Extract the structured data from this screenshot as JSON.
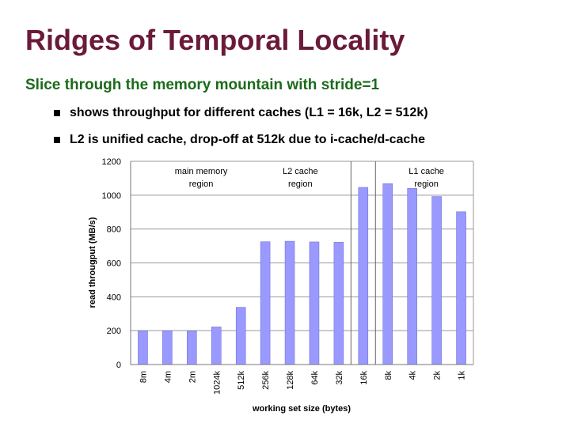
{
  "slide": {
    "title": "Ridges of Temporal Locality",
    "subtitle": "Slice through the memory mountain with stride=1",
    "bullets": [
      "shows throughput for different caches (L1 = 16k, L2 = 512k)",
      "L2 is unified cache, drop-off at 512k due to i-cache/d-cache"
    ]
  },
  "colors": {
    "title": "#6b1a3a",
    "subtitle": "#1b6b1b",
    "bar_fill": "#9999ff",
    "bar_stroke": "#6666cc",
    "grid": "#999999"
  },
  "chart_data": {
    "type": "bar",
    "categories": [
      "8m",
      "4m",
      "2m",
      "1024k",
      "512k",
      "256k",
      "128k",
      "64k",
      "32k",
      "16k",
      "8k",
      "4k",
      "2k",
      "1k"
    ],
    "values": [
      200,
      200,
      198,
      222,
      338,
      725,
      728,
      724,
      722,
      1046,
      1068,
      1040,
      992,
      902
    ],
    "xlabel": "working set size (bytes)",
    "ylabel": "read througput (MB/s)",
    "ylim": [
      0,
      1200
    ],
    "yticks": [
      0,
      200,
      400,
      600,
      800,
      1000,
      1200
    ],
    "grid": true,
    "legend": "none",
    "region_labels": [
      [
        "main memory",
        "region"
      ],
      [
        "L2 cache",
        "region"
      ],
      [
        "L1 cache",
        "region"
      ]
    ],
    "region_dividers_after": [
      "32k",
      "16k"
    ]
  }
}
